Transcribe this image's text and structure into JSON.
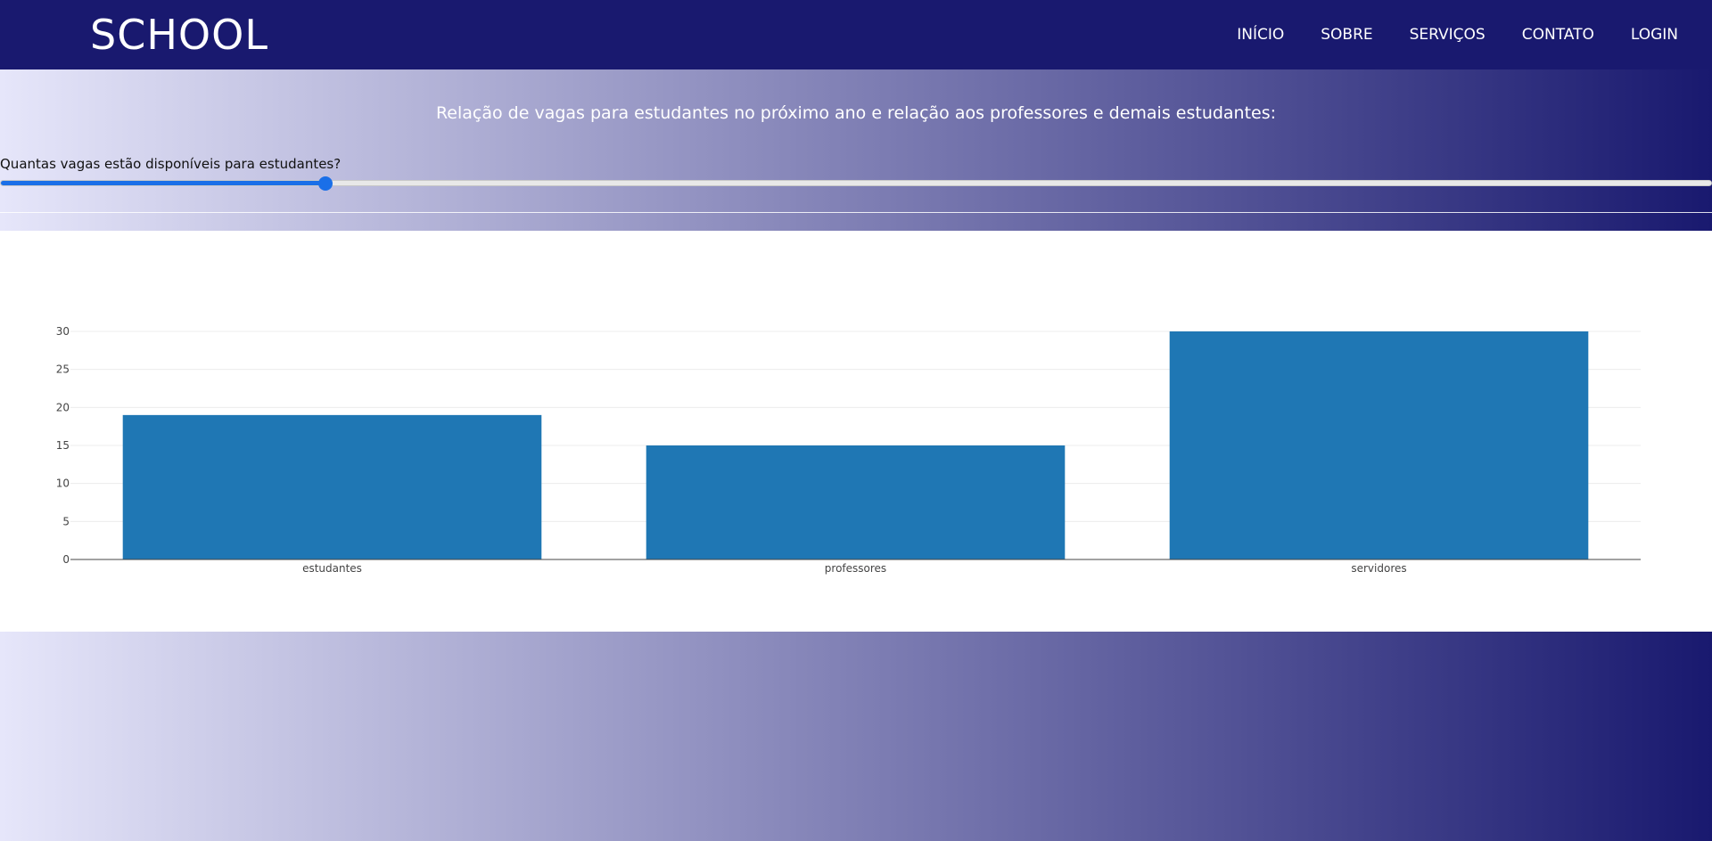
{
  "header": {
    "logo": "SCHOOL",
    "nav": [
      "INÍCIO",
      "SOBRE",
      "SERVIÇOS",
      "CONTATO",
      "LOGIN"
    ]
  },
  "hero": {
    "title": "Relação de vagas para estudantes no próximo ano e relação aos professores e demais estudantes:",
    "slider_label": "Quantas vagas estão disponíveis para estudantes?",
    "slider_value_fraction": 0.19
  },
  "colors": {
    "navy": "#19196f",
    "lavender": "#e6e6fa",
    "bar": "#1f77b4",
    "slider": "#1a6fe8"
  },
  "chart_data": {
    "type": "bar",
    "categories": [
      "estudantes",
      "professores",
      "servidores"
    ],
    "values": [
      19,
      15,
      30
    ],
    "title": "",
    "xlabel": "",
    "ylabel": "",
    "ylim": [
      0,
      30
    ],
    "yticks": [
      0,
      5,
      10,
      15,
      20,
      25,
      30
    ],
    "grid": true,
    "legend": "none"
  }
}
